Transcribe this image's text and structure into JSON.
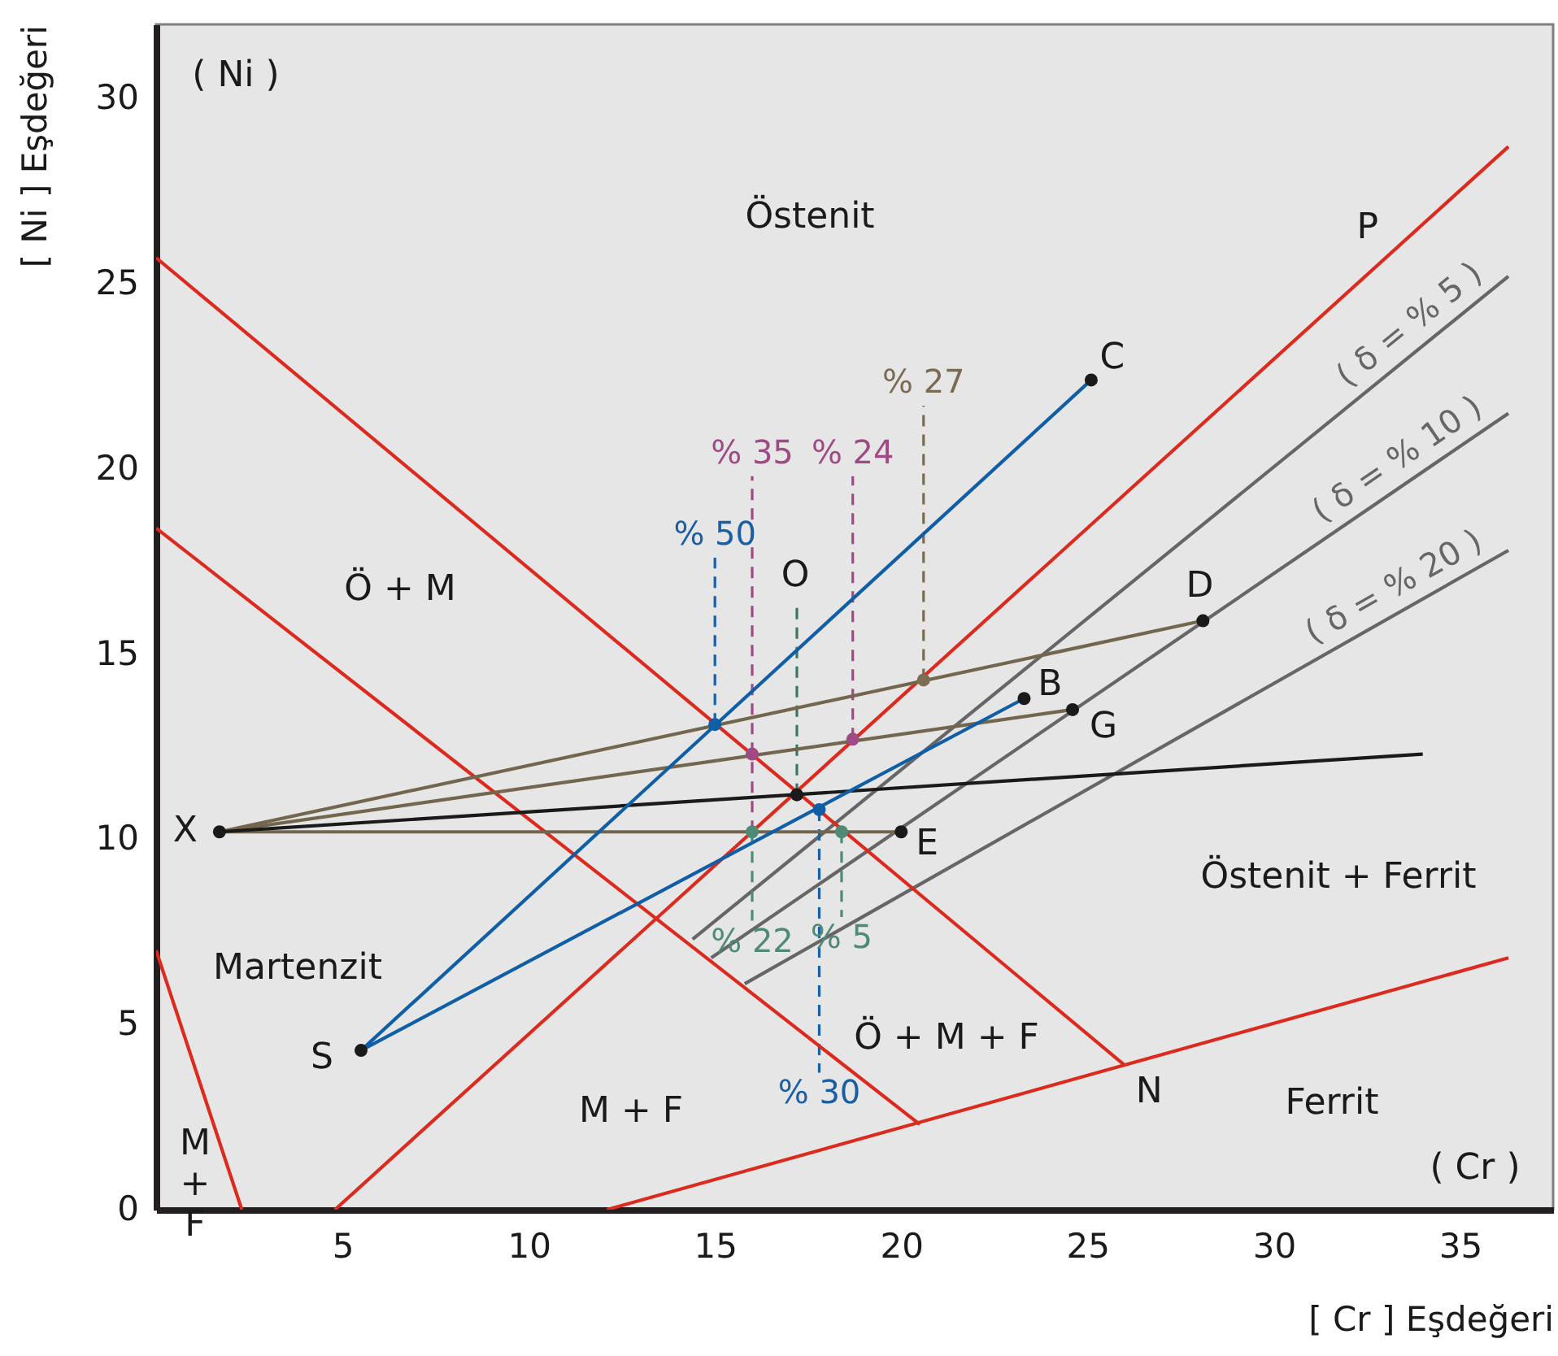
{
  "chart_data": {
    "type": "line",
    "xlabel": "[ Cr ]  Eşdeğeri",
    "ylabel": "[ Ni ]  Eşdeğeri",
    "xlim": [
      0,
      37.5
    ],
    "ylim": [
      0,
      32
    ],
    "xticks": [
      5,
      10,
      15,
      20,
      25,
      30,
      35
    ],
    "yticks": [
      0,
      5,
      10,
      15,
      20,
      25,
      30
    ],
    "series": [
      {
        "name": "( δ = % 5 )",
        "color": "#666666",
        "x": [
          14.4,
          36.3
        ],
        "values": [
          7.3,
          25.2
        ]
      },
      {
        "name": "( δ = % 10 )",
        "color": "#666666",
        "x": [
          14.9,
          36.3
        ],
        "values": [
          6.8,
          21.5
        ]
      },
      {
        "name": "( δ = % 20 )",
        "color": "#666666",
        "x": [
          15.8,
          36.3
        ],
        "values": [
          6.1,
          17.8
        ]
      },
      {
        "name": "% 50",
        "color": "#1a5fa3",
        "line_style": "dashed",
        "x": [
          15.0,
          15.0
        ],
        "values": [
          13.1,
          17.6
        ]
      },
      {
        "name": "% 35",
        "color": "#a04a85",
        "line_style": "dashed",
        "x": [
          16.0,
          16.0
        ],
        "values": [
          10.2,
          19.8
        ]
      },
      {
        "name": "% 24",
        "color": "#a04a85",
        "line_style": "dashed",
        "x": [
          18.7,
          18.7
        ],
        "values": [
          12.7,
          19.8
        ]
      },
      {
        "name": "% 27",
        "color": "#7a6b55",
        "line_style": "dashed",
        "x": [
          20.6,
          20.6
        ],
        "values": [
          14.3,
          21.7
        ]
      },
      {
        "color": "#3b7564",
        "line_style": "dashed",
        "x": [
          17.2,
          17.2
        ],
        "values": [
          11.2,
          16.3
        ]
      },
      {
        "name": "% 22",
        "color": "#4e8a76",
        "line_style": "dashed",
        "x": [
          16.0,
          16.0
        ],
        "values": [
          10.2,
          7.8
        ]
      },
      {
        "name": "% 5",
        "color": "#4e8a76",
        "line_style": "dashed",
        "x": [
          18.4,
          18.4
        ],
        "values": [
          10.2,
          7.9
        ]
      },
      {
        "name": "% 30",
        "color": "#1a5fa3",
        "line_style": "dashed",
        "x": [
          17.8,
          17.8
        ],
        "values": [
          10.8,
          3.7
        ]
      },
      {
        "color": "#dc2a1f",
        "x": [
          4.8,
          36.3
        ],
        "values": [
          0,
          28.7
        ]
      },
      {
        "color": "#dc2a1f",
        "x": [
          0,
          26.0
        ],
        "values": [
          25.7,
          3.9
        ]
      },
      {
        "color": "#dc2a1f",
        "x": [
          0,
          20.5
        ],
        "values": [
          18.4,
          2.3
        ]
      },
      {
        "color": "#dc2a1f",
        "x": [
          12.1,
          36.3
        ],
        "values": [
          0,
          6.8
        ]
      },
      {
        "color": "#dc2a1f",
        "x": [
          0,
          2.3
        ],
        "values": [
          7.0,
          0
        ]
      },
      {
        "color": "#73664f",
        "x": [
          1.7,
          28.1
        ],
        "values": [
          10.2,
          15.9
        ]
      },
      {
        "color": "#73664f",
        "x": [
          1.7,
          24.6
        ],
        "values": [
          10.2,
          13.5
        ]
      },
      {
        "color": "#73664f",
        "x": [
          1.7,
          20.0
        ],
        "values": [
          10.2,
          10.2
        ]
      },
      {
        "color": "#1a1a1a",
        "x": [
          1.7,
          34.0
        ],
        "values": [
          10.2,
          12.3
        ]
      },
      {
        "color": "#0f5ea6",
        "x": [
          5.5,
          25.1
        ],
        "values": [
          4.3,
          22.4
        ]
      },
      {
        "color": "#0f5ea6",
        "x": [
          5.5,
          23.3
        ],
        "values": [
          4.3,
          13.8
        ]
      },
      {
        "type": "scatter",
        "color": "#1a1a1a",
        "marker": "circle",
        "x": [
          1.7,
          5.5,
          25.1,
          23.3,
          24.6,
          28.1,
          20.0,
          17.2
        ],
        "values": [
          10.2,
          4.3,
          22.4,
          13.8,
          13.5,
          15.9,
          10.2,
          11.2
        ]
      },
      {
        "type": "scatter",
        "color": "#0f5ea6",
        "marker": "circle",
        "x": [
          15.0,
          17.8
        ],
        "values": [
          13.1,
          10.8
        ]
      },
      {
        "type": "scatter",
        "color": "#a04a85",
        "marker": "circle",
        "x": [
          16.0,
          18.7
        ],
        "values": [
          12.3,
          12.7
        ]
      },
      {
        "type": "scatter",
        "color": "#7d6e52",
        "marker": "circle",
        "x": [
          20.6
        ],
        "values": [
          14.3
        ]
      },
      {
        "type": "scatter",
        "color": "#4e8a76",
        "marker": "circle",
        "x": [
          16.0,
          18.4
        ],
        "values": [
          10.2,
          10.2
        ]
      }
    ],
    "annotations": [
      "( Ni )",
      "Östenit",
      "Ö + M",
      "Martenzit",
      "M\n+\nF",
      "M + F",
      "Ö + M + F",
      "Östenit + Ferrit",
      "Ferrit",
      "( Cr )",
      {
        "text": "X",
        "x": 1.7,
        "y": 10.2
      },
      {
        "text": "S",
        "x": 5.5,
        "y": 4.3
      },
      {
        "text": "C",
        "x": 25.1,
        "y": 22.4
      },
      {
        "text": "B",
        "x": 23.3,
        "y": 13.8
      },
      {
        "text": "G",
        "x": 24.6,
        "y": 13.5
      },
      {
        "text": "D",
        "x": 28.1,
        "y": 15.9
      },
      {
        "text": "E",
        "x": 20.0,
        "y": 10.2
      },
      {
        "text": "O",
        "x": 17.2,
        "y": 16.3
      },
      {
        "text": "P",
        "x": 33.0,
        "y": 25.7
      },
      {
        "text": "N",
        "x": 26.0,
        "y": 3.9
      }
    ]
  }
}
